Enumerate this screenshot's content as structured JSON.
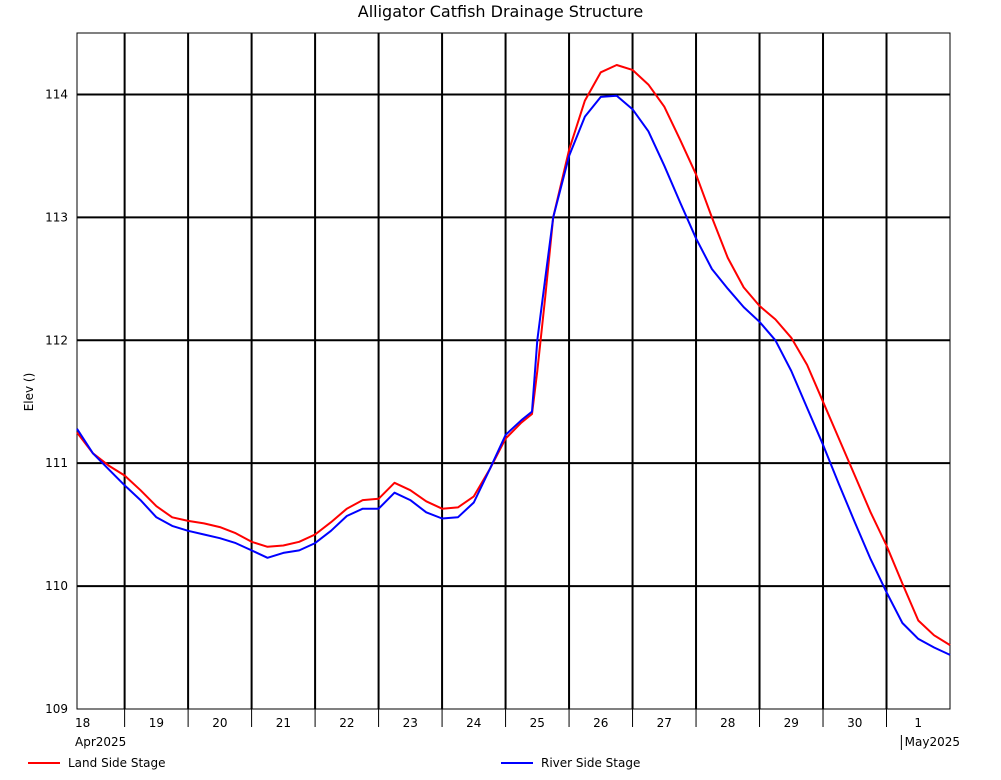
{
  "chart_data": {
    "type": "line",
    "title": "Alligator Catfish Drainage Structure",
    "ylabel": "Elev ()",
    "xlabel": "",
    "ylim": [
      109,
      114.5
    ],
    "xlim": [
      "2025-04-18T00:00",
      "2025-05-01T18:00"
    ],
    "yticks": [
      109,
      110,
      111,
      112,
      113,
      114
    ],
    "xticks": [
      {
        "label": "18",
        "sub": "Apr2025"
      },
      {
        "label": "19"
      },
      {
        "label": "20"
      },
      {
        "label": "21"
      },
      {
        "label": "22"
      },
      {
        "label": "23"
      },
      {
        "label": "24"
      },
      {
        "label": "25"
      },
      {
        "label": "26"
      },
      {
        "label": "27"
      },
      {
        "label": "28"
      },
      {
        "label": "29"
      },
      {
        "label": "30"
      },
      {
        "label": "1"
      }
    ],
    "month_label": "May2025",
    "grid": true,
    "legend_position": "bottom",
    "series": [
      {
        "name": "Land Side Stage",
        "color": "#ff0000",
        "points": [
          [
            "2025-04-18T00:00",
            111.25
          ],
          [
            "2025-04-18T06:00",
            111.08
          ],
          [
            "2025-04-18T12:00",
            110.98
          ],
          [
            "2025-04-18T18:00",
            110.9
          ],
          [
            "2025-04-19T00:00",
            110.78
          ],
          [
            "2025-04-19T06:00",
            110.65
          ],
          [
            "2025-04-19T12:00",
            110.56
          ],
          [
            "2025-04-19T18:00",
            110.53
          ],
          [
            "2025-04-20T00:00",
            110.51
          ],
          [
            "2025-04-20T06:00",
            110.48
          ],
          [
            "2025-04-20T12:00",
            110.43
          ],
          [
            "2025-04-20T18:00",
            110.36
          ],
          [
            "2025-04-21T00:00",
            110.32
          ],
          [
            "2025-04-21T06:00",
            110.33
          ],
          [
            "2025-04-21T12:00",
            110.36
          ],
          [
            "2025-04-21T18:00",
            110.42
          ],
          [
            "2025-04-22T00:00",
            110.52
          ],
          [
            "2025-04-22T06:00",
            110.63
          ],
          [
            "2025-04-22T12:00",
            110.7
          ],
          [
            "2025-04-22T18:00",
            110.71
          ],
          [
            "2025-04-23T00:00",
            110.84
          ],
          [
            "2025-04-23T06:00",
            110.78
          ],
          [
            "2025-04-23T12:00",
            110.69
          ],
          [
            "2025-04-23T18:00",
            110.63
          ],
          [
            "2025-04-24T00:00",
            110.64
          ],
          [
            "2025-04-24T06:00",
            110.73
          ],
          [
            "2025-04-24T12:00",
            110.95
          ],
          [
            "2025-04-24T18:00",
            111.2
          ],
          [
            "2025-04-25T00:00",
            111.33
          ],
          [
            "2025-04-25T04:00",
            111.4
          ],
          [
            "2025-04-25T06:00",
            111.75
          ],
          [
            "2025-04-25T09:00",
            112.35
          ],
          [
            "2025-04-25T12:00",
            113.0
          ],
          [
            "2025-04-25T18:00",
            113.55
          ],
          [
            "2025-04-26T00:00",
            113.95
          ],
          [
            "2025-04-26T06:00",
            114.18
          ],
          [
            "2025-04-26T12:00",
            114.24
          ],
          [
            "2025-04-26T18:00",
            114.2
          ],
          [
            "2025-04-27T00:00",
            114.08
          ],
          [
            "2025-04-27T06:00",
            113.9
          ],
          [
            "2025-04-27T12:00",
            113.63
          ],
          [
            "2025-04-27T18:00",
            113.35
          ],
          [
            "2025-04-28T00:00",
            113.0
          ],
          [
            "2025-04-28T06:00",
            112.67
          ],
          [
            "2025-04-28T12:00",
            112.43
          ],
          [
            "2025-04-28T18:00",
            112.28
          ],
          [
            "2025-04-29T00:00",
            112.17
          ],
          [
            "2025-04-29T06:00",
            112.02
          ],
          [
            "2025-04-29T12:00",
            111.8
          ],
          [
            "2025-04-29T18:00",
            111.5
          ],
          [
            "2025-04-30T00:00",
            111.2
          ],
          [
            "2025-04-30T06:00",
            110.9
          ],
          [
            "2025-04-30T12:00",
            110.6
          ],
          [
            "2025-04-30T18:00",
            110.33
          ],
          [
            "2025-05-01T00:00",
            110.02
          ],
          [
            "2025-05-01T06:00",
            109.72
          ],
          [
            "2025-05-01T12:00",
            109.6
          ],
          [
            "2025-05-01T18:00",
            109.52
          ]
        ]
      },
      {
        "name": "River Side Stage",
        "color": "#0000ff",
        "points": [
          [
            "2025-04-18T00:00",
            111.28
          ],
          [
            "2025-04-18T06:00",
            111.08
          ],
          [
            "2025-04-18T12:00",
            110.95
          ],
          [
            "2025-04-18T18:00",
            110.82
          ],
          [
            "2025-04-19T00:00",
            110.7
          ],
          [
            "2025-04-19T06:00",
            110.56
          ],
          [
            "2025-04-19T12:00",
            110.49
          ],
          [
            "2025-04-19T18:00",
            110.45
          ],
          [
            "2025-04-20T00:00",
            110.42
          ],
          [
            "2025-04-20T06:00",
            110.39
          ],
          [
            "2025-04-20T12:00",
            110.35
          ],
          [
            "2025-04-20T18:00",
            110.29
          ],
          [
            "2025-04-21T00:00",
            110.23
          ],
          [
            "2025-04-21T06:00",
            110.27
          ],
          [
            "2025-04-21T12:00",
            110.29
          ],
          [
            "2025-04-21T18:00",
            110.35
          ],
          [
            "2025-04-22T00:00",
            110.45
          ],
          [
            "2025-04-22T06:00",
            110.57
          ],
          [
            "2025-04-22T12:00",
            110.63
          ],
          [
            "2025-04-22T18:00",
            110.63
          ],
          [
            "2025-04-23T00:00",
            110.76
          ],
          [
            "2025-04-23T06:00",
            110.7
          ],
          [
            "2025-04-23T12:00",
            110.6
          ],
          [
            "2025-04-23T18:00",
            110.55
          ],
          [
            "2025-04-24T00:00",
            110.56
          ],
          [
            "2025-04-24T06:00",
            110.68
          ],
          [
            "2025-04-24T12:00",
            110.95
          ],
          [
            "2025-04-24T18:00",
            111.23
          ],
          [
            "2025-04-25T00:00",
            111.35
          ],
          [
            "2025-04-25T04:00",
            111.42
          ],
          [
            "2025-04-25T06:00",
            112.0
          ],
          [
            "2025-04-25T09:00",
            112.5
          ],
          [
            "2025-04-25T12:00",
            113.0
          ],
          [
            "2025-04-25T18:00",
            113.5
          ],
          [
            "2025-04-26T00:00",
            113.82
          ],
          [
            "2025-04-26T06:00",
            113.98
          ],
          [
            "2025-04-26T12:00",
            113.99
          ],
          [
            "2025-04-26T18:00",
            113.88
          ],
          [
            "2025-04-27T00:00",
            113.7
          ],
          [
            "2025-04-27T06:00",
            113.42
          ],
          [
            "2025-04-27T12:00",
            113.12
          ],
          [
            "2025-04-27T18:00",
            112.83
          ],
          [
            "2025-04-28T00:00",
            112.58
          ],
          [
            "2025-04-28T06:00",
            112.42
          ],
          [
            "2025-04-28T12:00",
            112.27
          ],
          [
            "2025-04-28T18:00",
            112.15
          ],
          [
            "2025-04-29T00:00",
            112.0
          ],
          [
            "2025-04-29T06:00",
            111.75
          ],
          [
            "2025-04-29T12:00",
            111.45
          ],
          [
            "2025-04-29T18:00",
            111.15
          ],
          [
            "2025-04-30T00:00",
            110.83
          ],
          [
            "2025-04-30T06:00",
            110.52
          ],
          [
            "2025-04-30T12:00",
            110.22
          ],
          [
            "2025-04-30T18:00",
            109.95
          ],
          [
            "2025-05-01T00:00",
            109.7
          ],
          [
            "2025-05-01T06:00",
            109.57
          ],
          [
            "2025-05-01T12:00",
            109.5
          ],
          [
            "2025-05-01T18:00",
            109.44
          ]
        ]
      }
    ]
  }
}
